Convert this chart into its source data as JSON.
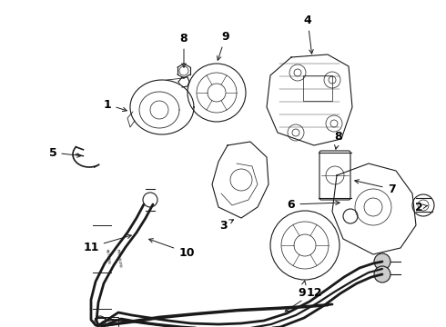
{
  "bg_color": "#ffffff",
  "line_color": "#1a1a1a",
  "label_color": "#000000",
  "fig_w": 4.9,
  "fig_h": 3.6,
  "dpi": 100
}
